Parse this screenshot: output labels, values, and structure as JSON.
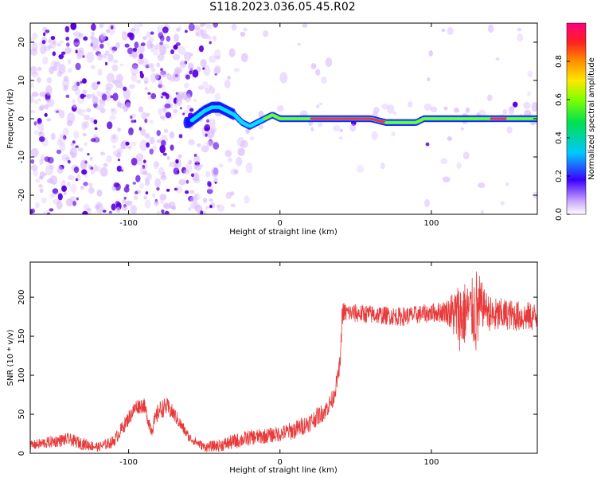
{
  "title": "S118.2023.036.05.45.R02",
  "colors": {
    "trace": "#e83a3a",
    "axis": "#000000",
    "scatter_light": "#d8b8ff",
    "scatter_dark": "#5a00e0"
  },
  "chart_data": [
    {
      "type": "heatmap",
      "xlabel": "Height of straight line (km)",
      "ylabel": "Frequency (Hz)",
      "xlim": [
        -165,
        170
      ],
      "ylim": [
        -25,
        25
      ],
      "xticks": [
        -100,
        0,
        100
      ],
      "yticks": [
        -20,
        -10,
        0,
        10,
        20
      ],
      "colorbar": {
        "label": "Normalized spectral amplitude",
        "range": [
          0,
          1
        ],
        "ticks": [
          "0.0",
          "0.2",
          "0.4",
          "0.6",
          "0.8"
        ],
        "colormap": "gist_rainbow"
      },
      "ridge": {
        "x": [
          -60,
          -50,
          -45,
          -40,
          -35,
          -30,
          -25,
          -20,
          -15,
          -10,
          -5,
          0,
          5,
          10,
          20,
          40,
          60,
          70,
          75,
          80,
          85,
          90,
          95,
          100,
          110,
          130,
          150,
          170
        ],
        "y": [
          -1,
          2,
          3,
          3,
          2,
          1,
          -1,
          -2,
          -1,
          0,
          1,
          0,
          0,
          0,
          0,
          0,
          0,
          -1,
          -1,
          -1,
          -1,
          -1,
          0,
          0,
          0,
          0,
          0,
          0
        ]
      }
    },
    {
      "type": "line",
      "xlabel": "Height of straight line (km)",
      "ylabel": "SNR (10 * v/v)",
      "xlim": [
        -165,
        170
      ],
      "ylim": [
        0,
        245
      ],
      "xticks": [
        -100,
        0,
        100
      ],
      "yticks": [
        0,
        50,
        100,
        150,
        200
      ],
      "series": [
        {
          "x": [
            -165,
            -150,
            -140,
            -130,
            -120,
            -110,
            -100,
            -95,
            -90,
            -85,
            -80,
            -75,
            -70,
            -60,
            -50,
            -40,
            -30,
            -20,
            -10,
            0,
            10,
            20,
            30,
            35,
            38,
            40,
            41,
            45,
            60,
            80,
            100,
            110,
            120,
            125,
            130,
            135,
            140,
            150,
            160,
            170
          ],
          "y": [
            10,
            15,
            18,
            12,
            8,
            15,
            45,
            60,
            62,
            30,
            55,
            60,
            50,
            20,
            8,
            10,
            15,
            20,
            22,
            25,
            30,
            40,
            55,
            70,
            95,
            120,
            180,
            180,
            178,
            175,
            180,
            182,
            175,
            185,
            180,
            190,
            175,
            178,
            175,
            175
          ],
          "noise": [
            6,
            8,
            8,
            8,
            6,
            8,
            10,
            10,
            10,
            10,
            12,
            12,
            10,
            6,
            6,
            8,
            10,
            10,
            10,
            10,
            12,
            12,
            12,
            12,
            12,
            10,
            15,
            12,
            12,
            12,
            12,
            15,
            50,
            30,
            60,
            20,
            25,
            20,
            20,
            18
          ]
        }
      ]
    }
  ]
}
